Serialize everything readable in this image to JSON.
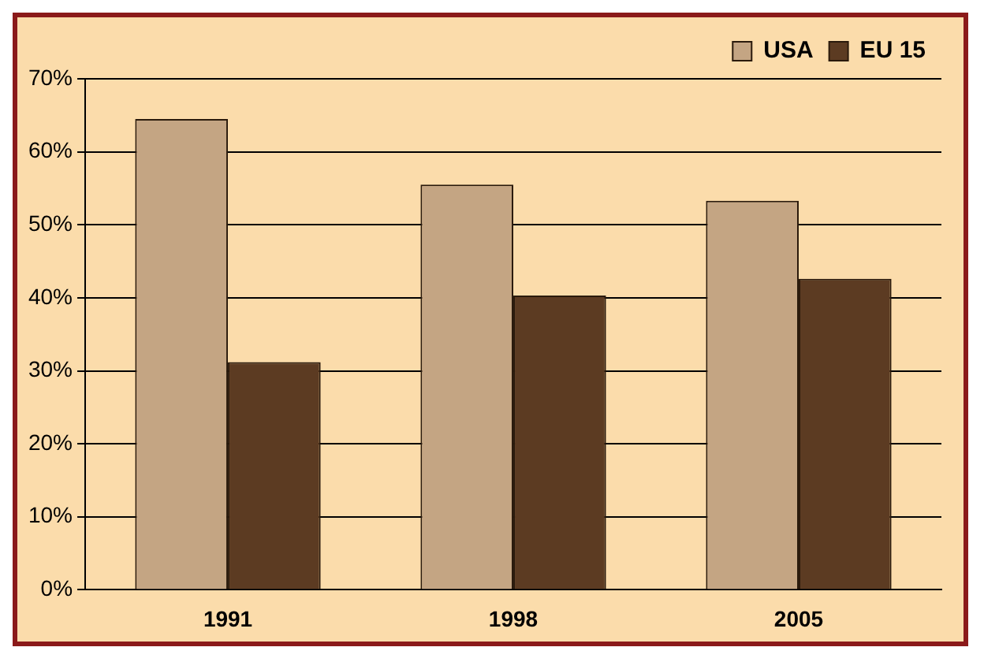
{
  "chart_data": {
    "type": "bar",
    "categories": [
      "1991",
      "1998",
      "2005"
    ],
    "series": [
      {
        "name": "USA",
        "color": "#c4a583",
        "values": [
          64.5,
          55.5,
          53.3
        ]
      },
      {
        "name": "EU 15",
        "color": "#5c3b22",
        "values": [
          31.2,
          40.3,
          42.6
        ]
      }
    ],
    "ylim": [
      0,
      70
    ],
    "yticks": [
      {
        "value": 0,
        "label": "0%"
      },
      {
        "value": 10,
        "label": "10%"
      },
      {
        "value": 20,
        "label": "20%"
      },
      {
        "value": 30,
        "label": "30%"
      },
      {
        "value": 40,
        "label": "40%"
      },
      {
        "value": 50,
        "label": "50%"
      },
      {
        "value": 60,
        "label": "60%"
      },
      {
        "value": 70,
        "label": "70%"
      }
    ],
    "grid": "y",
    "legend": "top right"
  }
}
